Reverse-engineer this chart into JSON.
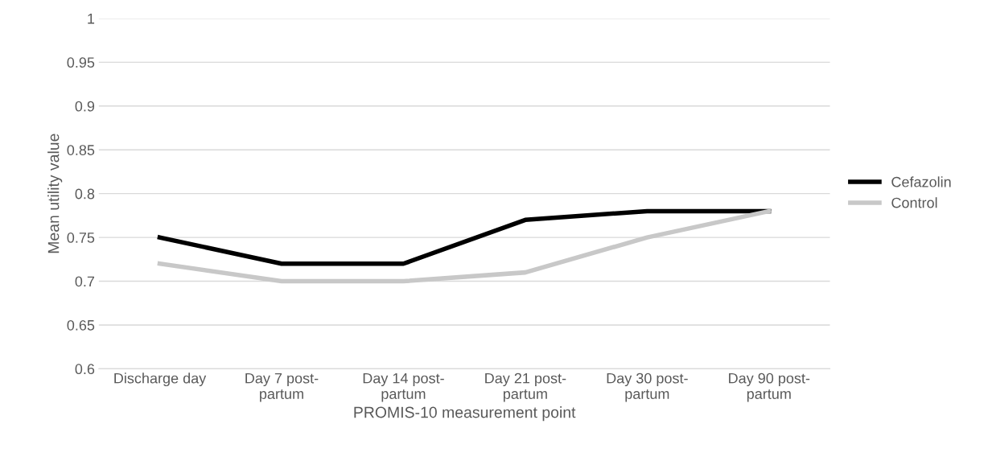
{
  "chart_data": {
    "type": "line",
    "xlabel": "PROMIS-10 measurement point",
    "ylabel": "Mean utility value",
    "categories": [
      "Discharge day",
      "Day 7 post-\npartum",
      "Day 14 post-\npartum",
      "Day 21 post-\npartum",
      "Day 30 post-\npartum",
      "Day 90 post-\npartum"
    ],
    "series": [
      {
        "name": "Cefazolin",
        "color": "#000000",
        "values": [
          0.75,
          0.72,
          0.72,
          0.77,
          0.78,
          0.78
        ]
      },
      {
        "name": "Control",
        "color": "#c8c8c8",
        "values": [
          0.72,
          0.7,
          0.7,
          0.71,
          0.75,
          0.78
        ]
      }
    ],
    "ylim": [
      0.6,
      1
    ],
    "yticks": [
      0.6,
      0.65,
      0.7,
      0.75,
      0.8,
      0.85,
      0.9,
      0.95,
      1
    ],
    "grid": "y",
    "legend": "right",
    "marker": "none",
    "line_style": "solid"
  }
}
